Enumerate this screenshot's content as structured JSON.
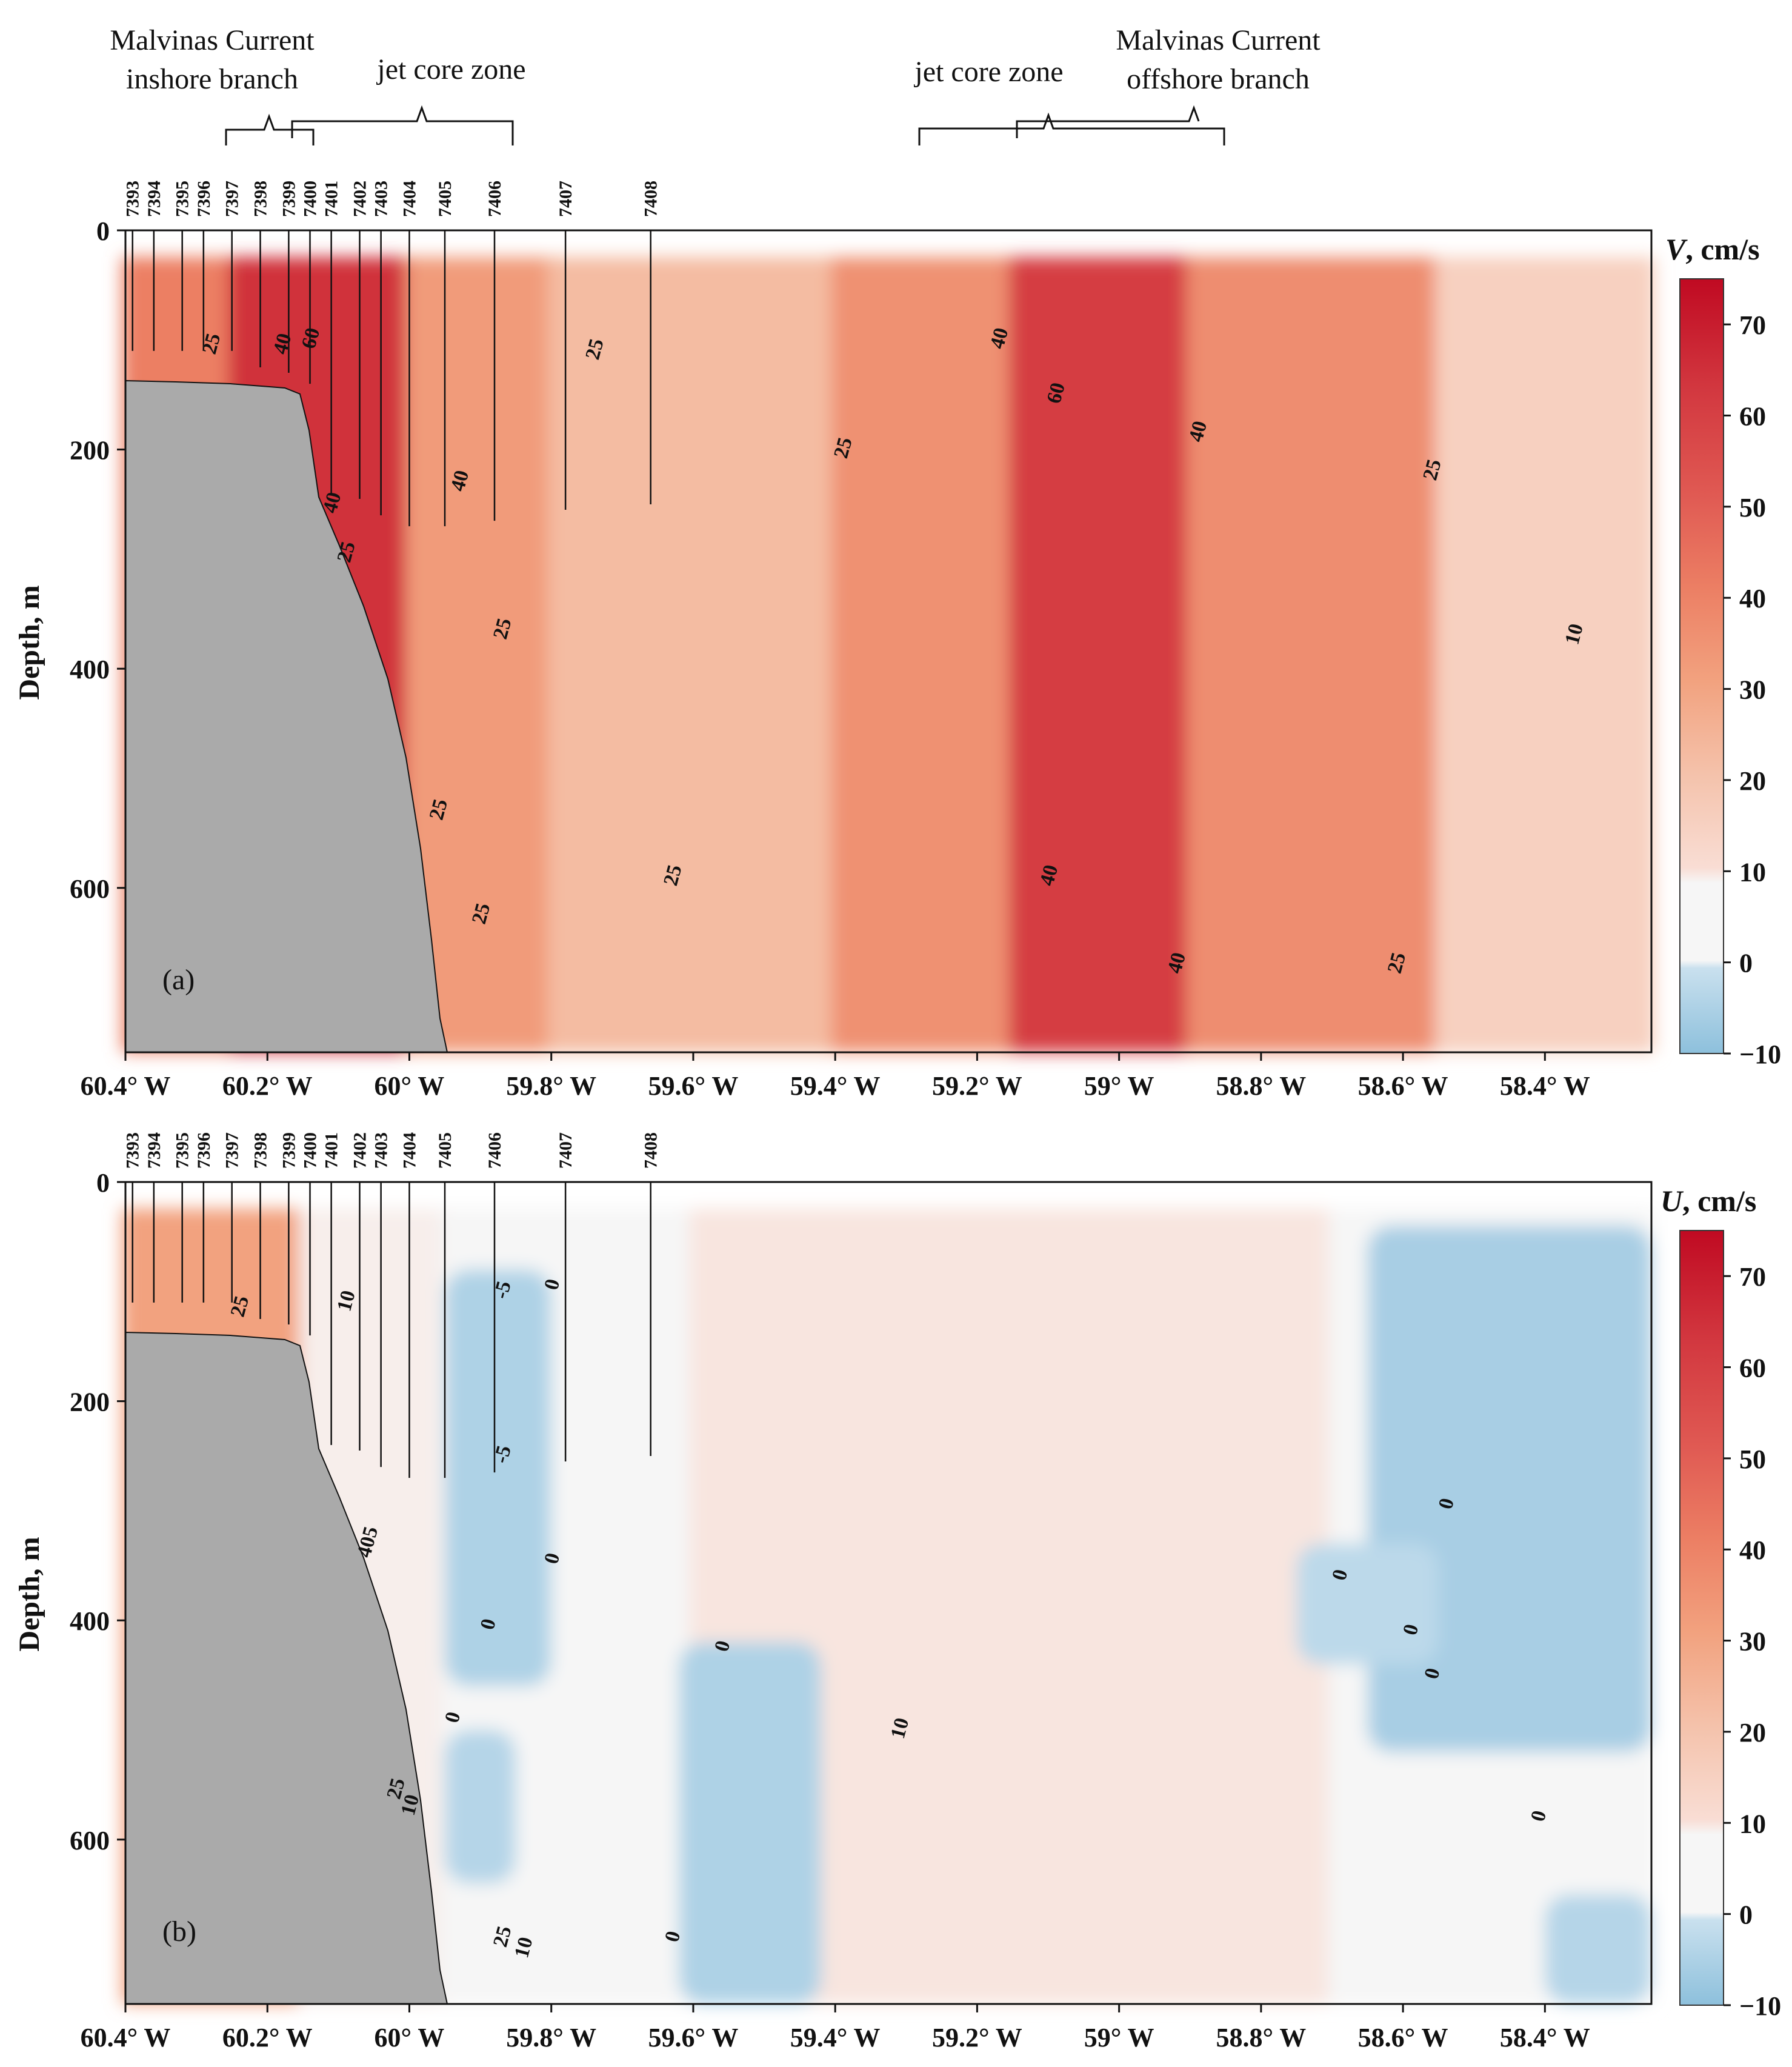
{
  "figure": {
    "annotations": [
      {
        "id": "inshore",
        "lines": [
          "Malvinas Current",
          "inshore branch"
        ]
      },
      {
        "id": "jet-left",
        "lines": [
          "jet core zone"
        ]
      },
      {
        "id": "jet-right",
        "lines": [
          "jet core zone"
        ]
      },
      {
        "id": "offshore",
        "lines": [
          "Malvinas Current",
          "offshore branch"
        ]
      }
    ]
  },
  "chart_data": [
    {
      "type": "heatmap",
      "panel_label": "(a)",
      "variable": "V",
      "colorbar_title": "cm/s",
      "ylabel": "Depth, m",
      "xlabel": "",
      "x_ticks": [
        "60.4° W",
        "60.2° W",
        "60° W",
        "59.8° W",
        "59.6° W",
        "59.4° W",
        "59.2° W",
        "59° W",
        "58.8° W",
        "58.6° W",
        "58.4° W"
      ],
      "x_tick_values": [
        -60.4,
        -60.2,
        -60.0,
        -59.8,
        -59.6,
        -59.4,
        -59.2,
        -59.0,
        -58.8,
        -58.6,
        -58.4
      ],
      "xlim": [
        -60.4,
        -58.25
      ],
      "y_ticks": [
        "0",
        "200",
        "400",
        "600"
      ],
      "y_tick_values": [
        0,
        200,
        400,
        600
      ],
      "ylim": [
        750,
        0
      ],
      "colorbar_ticks": [
        "−10",
        "0",
        "10",
        "20",
        "30",
        "40",
        "50",
        "60",
        "70"
      ],
      "colorbar_tick_values": [
        -10,
        0,
        10,
        20,
        30,
        40,
        50,
        60,
        70
      ],
      "colorbar_range": [
        -10,
        75
      ],
      "stations": [
        {
          "id": "7393",
          "lon": -60.39,
          "max_depth": 110
        },
        {
          "id": "7394",
          "lon": -60.36,
          "max_depth": 110
        },
        {
          "id": "7395",
          "lon": -60.32,
          "max_depth": 110
        },
        {
          "id": "7396",
          "lon": -60.29,
          "max_depth": 110
        },
        {
          "id": "7397",
          "lon": -60.25,
          "max_depth": 110
        },
        {
          "id": "7398",
          "lon": -60.21,
          "max_depth": 125
        },
        {
          "id": "7399",
          "lon": -60.17,
          "max_depth": 130
        },
        {
          "id": "7400",
          "lon": -60.14,
          "max_depth": 140
        },
        {
          "id": "7401",
          "lon": -60.11,
          "max_depth": 240
        },
        {
          "id": "7402",
          "lon": -60.07,
          "max_depth": 245
        },
        {
          "id": "7403",
          "lon": -60.04,
          "max_depth": 260
        },
        {
          "id": "7404",
          "lon": -60.0,
          "max_depth": 270
        },
        {
          "id": "7405",
          "lon": -59.95,
          "max_depth": 270
        },
        {
          "id": "7406",
          "lon": -59.88,
          "max_depth": 265
        },
        {
          "id": "7407",
          "lon": -59.78,
          "max_depth": 255
        },
        {
          "id": "7408",
          "lon": -59.66,
          "max_depth": 250
        }
      ],
      "velocity_bands": [
        {
          "lon_from": -60.4,
          "lon_to": -60.25,
          "value": 40
        },
        {
          "lon_from": -60.25,
          "lon_to": -60.0,
          "value": 62
        },
        {
          "lon_from": -60.0,
          "lon_to": -59.8,
          "value": 32
        },
        {
          "lon_from": -59.8,
          "lon_to": -59.4,
          "value": 22
        },
        {
          "lon_from": -59.4,
          "lon_to": -59.15,
          "value": 35
        },
        {
          "lon_from": -59.15,
          "lon_to": -58.9,
          "value": 58
        },
        {
          "lon_from": -58.9,
          "lon_to": -58.55,
          "value": 36
        },
        {
          "lon_from": -58.55,
          "lon_to": -58.25,
          "value": 15
        }
      ],
      "contour_labels": [
        {
          "text": "25",
          "lon": -60.27,
          "depth": 105
        },
        {
          "text": "40",
          "lon": -60.17,
          "depth": 105
        },
        {
          "text": "60",
          "lon": -60.13,
          "depth": 100
        },
        {
          "text": "25",
          "lon": -59.73,
          "depth": 110
        },
        {
          "text": "40",
          "lon": -59.92,
          "depth": 230
        },
        {
          "text": "40",
          "lon": -60.1,
          "depth": 250
        },
        {
          "text": "25",
          "lon": -60.08,
          "depth": 295
        },
        {
          "text": "25",
          "lon": -59.86,
          "depth": 365
        },
        {
          "text": "25",
          "lon": -59.95,
          "depth": 530
        },
        {
          "text": "25",
          "lon": -59.89,
          "depth": 625
        },
        {
          "text": "25",
          "lon": -59.62,
          "depth": 590
        },
        {
          "text": "25",
          "lon": -59.38,
          "depth": 200
        },
        {
          "text": "40",
          "lon": -59.16,
          "depth": 100
        },
        {
          "text": "60",
          "lon": -59.08,
          "depth": 150
        },
        {
          "text": "40",
          "lon": -58.88,
          "depth": 185
        },
        {
          "text": "40",
          "lon": -59.09,
          "depth": 590
        },
        {
          "text": "40",
          "lon": -58.91,
          "depth": 670
        },
        {
          "text": "25",
          "lon": -58.55,
          "depth": 220
        },
        {
          "text": "10",
          "lon": -58.35,
          "depth": 370
        },
        {
          "text": "25",
          "lon": -58.6,
          "depth": 670
        }
      ]
    },
    {
      "type": "heatmap",
      "panel_label": "(b)",
      "variable": "U",
      "colorbar_title": "cm/s",
      "ylabel": "Depth, m",
      "xlabel": "",
      "x_ticks": [
        "60.4° W",
        "60.2° W",
        "60° W",
        "59.8° W",
        "59.6° W",
        "59.4° W",
        "59.2° W",
        "59° W",
        "58.8° W",
        "58.6° W",
        "58.4° W"
      ],
      "x_tick_values": [
        -60.4,
        -60.2,
        -60.0,
        -59.8,
        -59.6,
        -59.4,
        -59.2,
        -59.0,
        -58.8,
        -58.6,
        -58.4
      ],
      "xlim": [
        -60.4,
        -58.25
      ],
      "y_ticks": [
        "0",
        "200",
        "400",
        "600"
      ],
      "y_tick_values": [
        0,
        200,
        400,
        600
      ],
      "ylim": [
        750,
        0
      ],
      "colorbar_ticks": [
        "−10",
        "0",
        "10",
        "20",
        "30",
        "40",
        "50",
        "60",
        "70"
      ],
      "colorbar_tick_values": [
        -10,
        0,
        10,
        20,
        30,
        40,
        50,
        60,
        70
      ],
      "colorbar_range": [
        -10,
        75
      ],
      "stations": [
        {
          "id": "7393",
          "lon": -60.39,
          "max_depth": 110
        },
        {
          "id": "7394",
          "lon": -60.36,
          "max_depth": 110
        },
        {
          "id": "7395",
          "lon": -60.32,
          "max_depth": 110
        },
        {
          "id": "7396",
          "lon": -60.29,
          "max_depth": 110
        },
        {
          "id": "7397",
          "lon": -60.25,
          "max_depth": 110
        },
        {
          "id": "7398",
          "lon": -60.21,
          "max_depth": 125
        },
        {
          "id": "7399",
          "lon": -60.17,
          "max_depth": 130
        },
        {
          "id": "7400",
          "lon": -60.14,
          "max_depth": 140
        },
        {
          "id": "7401",
          "lon": -60.11,
          "max_depth": 240
        },
        {
          "id": "7402",
          "lon": -60.07,
          "max_depth": 245
        },
        {
          "id": "7403",
          "lon": -60.04,
          "max_depth": 260
        },
        {
          "id": "7404",
          "lon": -60.0,
          "max_depth": 270
        },
        {
          "id": "7405",
          "lon": -59.95,
          "max_depth": 270
        },
        {
          "id": "7406",
          "lon": -59.88,
          "max_depth": 265
        },
        {
          "id": "7407",
          "lon": -59.78,
          "max_depth": 255
        },
        {
          "id": "7408",
          "lon": -59.66,
          "max_depth": 250
        }
      ],
      "velocity_bands": [
        {
          "lon_from": -60.4,
          "lon_to": -60.15,
          "value": 30
        },
        {
          "lon_from": -60.15,
          "lon_to": -59.95,
          "value": 8
        },
        {
          "lon_from": -59.95,
          "lon_to": -59.6,
          "value": 2
        },
        {
          "lon_from": -59.6,
          "lon_to": -58.7,
          "value": 9
        },
        {
          "lon_from": -58.7,
          "lon_to": -58.25,
          "value": 2
        }
      ],
      "negative_regions": [
        {
          "lon_from": -59.95,
          "lon_to": -59.8,
          "depth_from": 80,
          "depth_to": 460,
          "value": -5
        },
        {
          "lon_from": -59.95,
          "lon_to": -59.85,
          "depth_from": 500,
          "depth_to": 640,
          "value": -4
        },
        {
          "lon_from": -59.62,
          "lon_to": -59.42,
          "depth_from": 420,
          "depth_to": 750,
          "value": -5
        },
        {
          "lon_from": -58.65,
          "lon_to": -58.25,
          "depth_from": 40,
          "depth_to": 520,
          "value": -6
        },
        {
          "lon_from": -58.75,
          "lon_to": -58.55,
          "depth_from": 330,
          "depth_to": 440,
          "value": -3
        },
        {
          "lon_from": -58.4,
          "lon_to": -58.25,
          "depth_from": 650,
          "depth_to": 750,
          "value": -4
        }
      ],
      "contour_labels": [
        {
          "text": "25",
          "lon": -60.23,
          "depth": 115
        },
        {
          "text": "10",
          "lon": -60.08,
          "depth": 110
        },
        {
          "text": "-5",
          "lon": -59.86,
          "depth": 100
        },
        {
          "text": "0",
          "lon": -59.79,
          "depth": 95
        },
        {
          "text": "-5",
          "lon": -59.86,
          "depth": 250
        },
        {
          "text": "0",
          "lon": -59.79,
          "depth": 345
        },
        {
          "text": "0",
          "lon": -59.88,
          "depth": 405
        },
        {
          "text": "0",
          "lon": -59.93,
          "depth": 490
        },
        {
          "text": "25",
          "lon": -60.01,
          "depth": 555
        },
        {
          "text": "10",
          "lon": -59.99,
          "depth": 570
        },
        {
          "text": "405",
          "lon": -60.05,
          "depth": 330
        },
        {
          "text": "25",
          "lon": -59.86,
          "depth": 690
        },
        {
          "text": "10",
          "lon": -59.83,
          "depth": 700
        },
        {
          "text": "0",
          "lon": -59.55,
          "depth": 425
        },
        {
          "text": "0",
          "lon": -59.62,
          "depth": 690
        },
        {
          "text": "10",
          "lon": -59.3,
          "depth": 500
        },
        {
          "text": "0",
          "lon": -58.68,
          "depth": 360
        },
        {
          "text": "0",
          "lon": -58.58,
          "depth": 410
        },
        {
          "text": "0",
          "lon": -58.55,
          "depth": 450
        },
        {
          "text": "0",
          "lon": -58.53,
          "depth": 295
        },
        {
          "text": "0",
          "lon": -58.4,
          "depth": 580
        }
      ]
    }
  ]
}
